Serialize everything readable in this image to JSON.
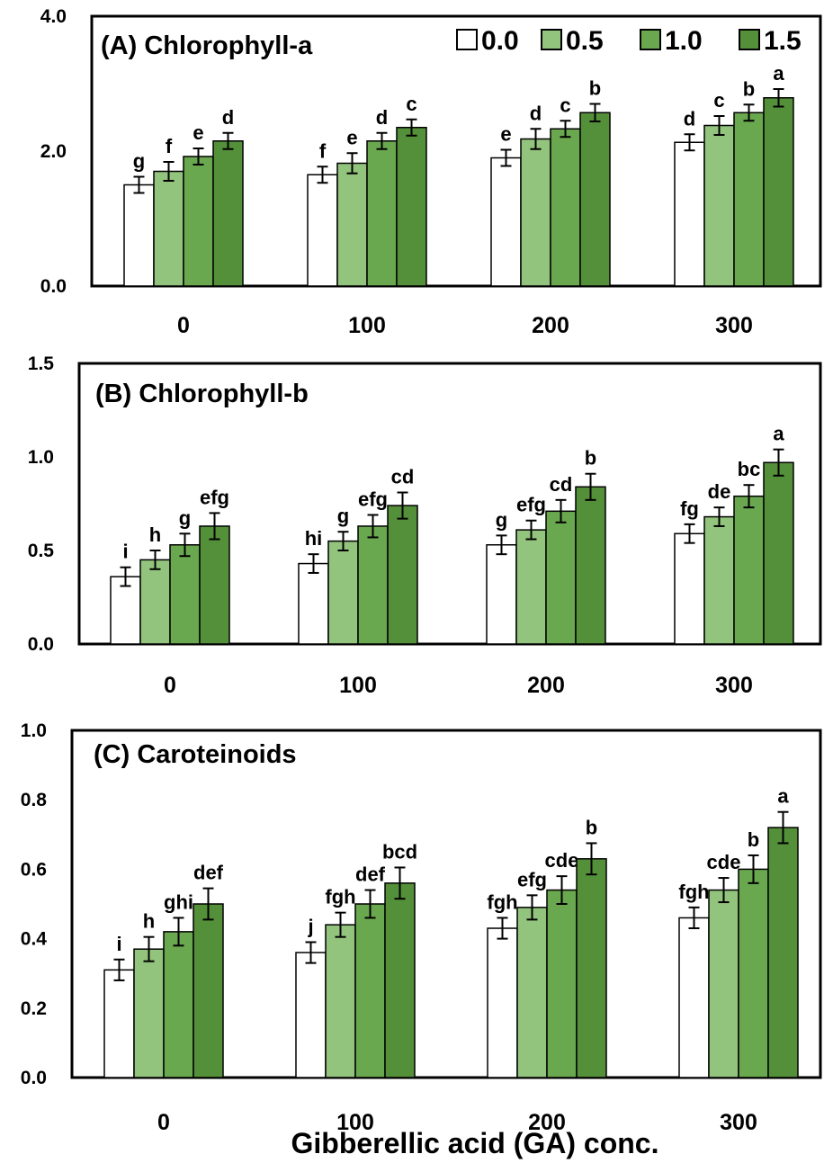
{
  "colors": {
    "0.0": "#ffffff",
    "0.5": "#93c47d",
    "1.0": "#6aa84f",
    "1.5": "#548f3a"
  },
  "legend": {
    "labels": [
      "0.0",
      "0.5",
      "1.0",
      "1.5"
    ]
  },
  "xlabel": "Gibberellic acid (GA) conc.",
  "chart_data": [
    {
      "type": "bar",
      "title": "(A) Chlorophyll-a",
      "categories": [
        "0",
        "100",
        "200",
        "300"
      ],
      "ylim": [
        0,
        4.0
      ],
      "yticks": [
        "0.0",
        "2.0",
        "4.0"
      ],
      "series": [
        {
          "name": "0.0",
          "values": [
            1.5,
            1.65,
            1.9,
            2.13
          ],
          "errors": [
            0.12,
            0.12,
            0.12,
            0.12
          ],
          "letters": [
            "g",
            "f",
            "e",
            "d"
          ]
        },
        {
          "name": "0.5",
          "values": [
            1.7,
            1.82,
            2.18,
            2.38
          ],
          "errors": [
            0.14,
            0.15,
            0.15,
            0.14
          ],
          "letters": [
            "f",
            "e",
            "d",
            "c"
          ]
        },
        {
          "name": "1.0",
          "values": [
            1.92,
            2.15,
            2.33,
            2.57
          ],
          "errors": [
            0.12,
            0.12,
            0.12,
            0.12
          ],
          "letters": [
            "e",
            "d",
            "c",
            "b"
          ]
        },
        {
          "name": "1.5",
          "values": [
            2.15,
            2.35,
            2.57,
            2.79
          ],
          "errors": [
            0.12,
            0.12,
            0.13,
            0.13
          ],
          "letters": [
            "d",
            "c",
            "b",
            "a"
          ]
        }
      ]
    },
    {
      "type": "bar",
      "title": "(B) Chlorophyll-b",
      "categories": [
        "0",
        "100",
        "200",
        "300"
      ],
      "ylim": [
        0,
        1.5
      ],
      "yticks": [
        "0.0",
        "0.5",
        "1.0",
        "1.5"
      ],
      "series": [
        {
          "name": "0.0",
          "values": [
            0.36,
            0.43,
            0.53,
            0.59
          ],
          "errors": [
            0.05,
            0.05,
            0.05,
            0.05
          ],
          "letters": [
            "i",
            "hi",
            "g",
            "fg"
          ]
        },
        {
          "name": "0.5",
          "values": [
            0.45,
            0.55,
            0.61,
            0.68
          ],
          "errors": [
            0.05,
            0.05,
            0.05,
            0.05
          ],
          "letters": [
            "h",
            "g",
            "efg",
            "de"
          ]
        },
        {
          "name": "1.0",
          "values": [
            0.53,
            0.63,
            0.71,
            0.79
          ],
          "errors": [
            0.06,
            0.06,
            0.06,
            0.06
          ],
          "letters": [
            "g",
            "efg",
            "cd",
            "bc"
          ]
        },
        {
          "name": "1.5",
          "values": [
            0.63,
            0.74,
            0.84,
            0.97
          ],
          "errors": [
            0.07,
            0.07,
            0.07,
            0.07
          ],
          "letters": [
            "efg",
            "cd",
            "b",
            "a"
          ]
        }
      ]
    },
    {
      "type": "bar",
      "title": "(C) Caroteinoids",
      "categories": [
        "0",
        "100",
        "200",
        "300"
      ],
      "ylim": [
        0,
        1.0
      ],
      "yticks": [
        "0.0",
        "0.2",
        "0.4",
        "0.6",
        "0.8",
        "1.0"
      ],
      "series": [
        {
          "name": "0.0",
          "values": [
            0.31,
            0.36,
            0.43,
            0.46
          ],
          "errors": [
            0.03,
            0.03,
            0.03,
            0.03
          ],
          "letters": [
            "i",
            "j",
            "fgh",
            "fgh"
          ]
        },
        {
          "name": "0.5",
          "values": [
            0.37,
            0.44,
            0.49,
            0.54
          ],
          "errors": [
            0.035,
            0.035,
            0.035,
            0.035
          ],
          "letters": [
            "h",
            "fgh",
            "efg",
            "cde"
          ]
        },
        {
          "name": "1.0",
          "values": [
            0.42,
            0.5,
            0.54,
            0.6
          ],
          "errors": [
            0.04,
            0.04,
            0.04,
            0.04
          ],
          "letters": [
            "ghi",
            "def",
            "cde",
            "b"
          ]
        },
        {
          "name": "1.5",
          "values": [
            0.5,
            0.56,
            0.63,
            0.72
          ],
          "errors": [
            0.045,
            0.045,
            0.045,
            0.045
          ],
          "letters": [
            "def",
            "bcd",
            "b",
            "a"
          ]
        }
      ]
    }
  ]
}
